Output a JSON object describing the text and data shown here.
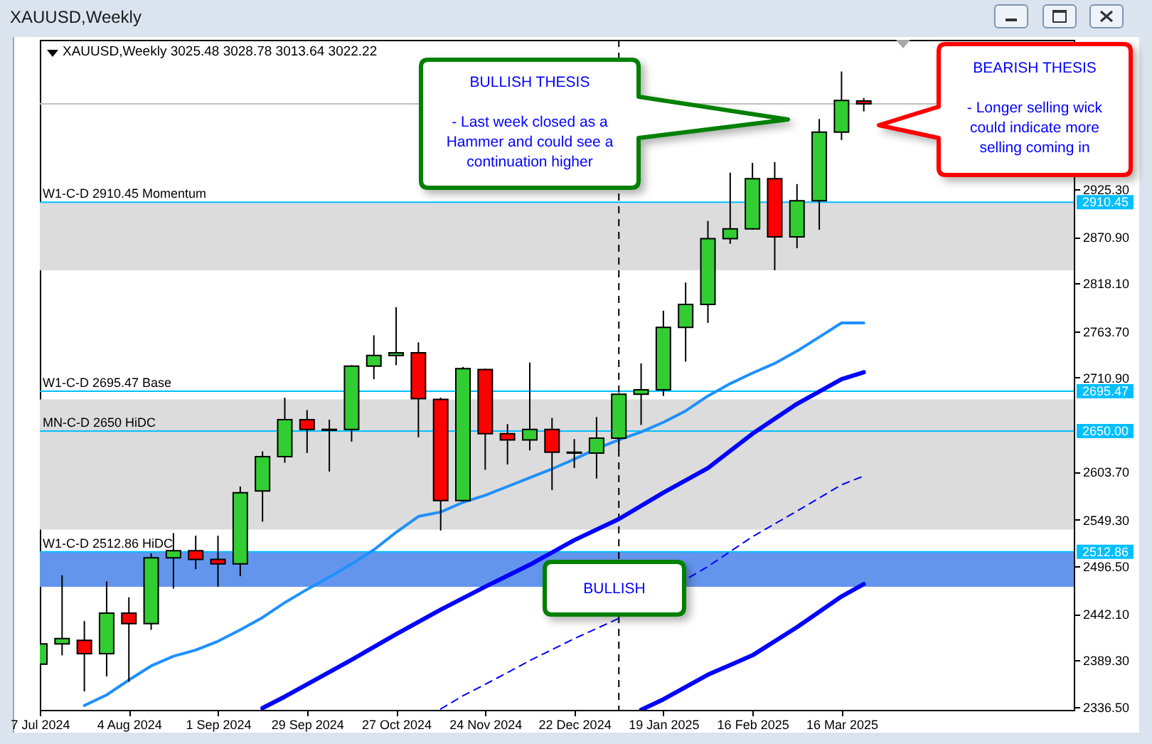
{
  "chart_data": {
    "type": "candlestick",
    "title": "XAUUSD,Weekly",
    "subtitle": "XAUUSD,Weekly 3025.48 3028.78 3013.64 3022.22",
    "x": [
      "2024-07-07",
      "2024-07-14",
      "2024-07-21",
      "2024-07-28",
      "2024-08-04",
      "2024-08-11",
      "2024-08-18",
      "2024-08-25",
      "2024-09-01",
      "2024-09-08",
      "2024-09-15",
      "2024-09-22",
      "2024-09-29",
      "2024-10-06",
      "2024-10-13",
      "2024-10-20",
      "2024-10-27",
      "2024-11-03",
      "2024-11-10",
      "2024-11-17",
      "2024-11-24",
      "2024-12-01",
      "2024-12-08",
      "2024-12-15",
      "2024-12-22",
      "2024-12-29",
      "2025-01-05",
      "2025-01-12",
      "2025-01-19",
      "2025-01-26",
      "2025-02-02",
      "2025-02-09",
      "2025-02-16",
      "2025-02-23",
      "2025-03-02",
      "2025-03-09",
      "2025-03-16",
      "2025-03-23"
    ],
    "ohlc": [
      [
        2385,
        2427,
        2350,
        2408
      ],
      [
        2408,
        2486,
        2395,
        2414
      ],
      [
        2412,
        2434,
        2354,
        2397
      ],
      [
        2397,
        2479,
        2371,
        2443
      ],
      [
        2443,
        2461,
        2365,
        2431
      ],
      [
        2431,
        2511,
        2424,
        2506
      ],
      [
        2506,
        2534,
        2471,
        2514
      ],
      [
        2514,
        2531,
        2493,
        2504
      ],
      [
        2504,
        2531,
        2473,
        2499
      ],
      [
        2499,
        2587,
        2485,
        2580
      ],
      [
        2582,
        2627,
        2547,
        2621
      ],
      [
        2621,
        2688,
        2614,
        2663
      ],
      [
        2663,
        2674,
        2625,
        2652
      ],
      [
        2651,
        2663,
        2604,
        2652
      ],
      [
        2652,
        2725,
        2638,
        2724
      ],
      [
        2724,
        2759,
        2709,
        2736
      ],
      [
        2736,
        2791,
        2725,
        2739
      ],
      [
        2739,
        2751,
        2643,
        2687
      ],
      [
        2686,
        2688,
        2537,
        2571
      ],
      [
        2571,
        2723,
        2570,
        2721
      ],
      [
        2720,
        2721,
        2606,
        2647
      ],
      [
        2647,
        2658,
        2612,
        2640
      ],
      [
        2640,
        2728,
        2628,
        2652
      ],
      [
        2652,
        2665,
        2583,
        2626
      ],
      [
        2626,
        2641,
        2608,
        2625
      ],
      [
        2625,
        2666,
        2596,
        2642
      ],
      [
        2642,
        2693,
        2628,
        2692
      ],
      [
        2692,
        2727,
        2657,
        2697
      ],
      [
        2697,
        2787,
        2690,
        2768
      ],
      [
        2768,
        2819,
        2729,
        2794
      ],
      [
        2794,
        2889,
        2773,
        2869
      ],
      [
        2869,
        2944,
        2863,
        2880
      ],
      [
        2880,
        2955,
        2879,
        2937
      ],
      [
        2937,
        2956,
        2833,
        2871
      ],
      [
        2871,
        2931,
        2858,
        2912
      ],
      [
        2912,
        3005,
        2879,
        2990
      ],
      [
        2990,
        3059,
        2981,
        3026
      ],
      [
        3025.48,
        3028.78,
        3013.64,
        3022.22
      ]
    ],
    "colors": [
      "#32cd32",
      "#32cd32",
      "#ff0000",
      "#32cd32",
      "#ff0000",
      "#32cd32",
      "#32cd32",
      "#ff0000",
      "#ff0000",
      "#32cd32",
      "#32cd32",
      "#32cd32",
      "#ff0000",
      "#32cd32",
      "#32cd32",
      "#32cd32",
      "#32cd32",
      "#ff0000",
      "#ff0000",
      "#32cd32",
      "#ff0000",
      "#ff0000",
      "#32cd32",
      "#ff0000",
      "#ff0000",
      "#32cd32",
      "#32cd32",
      "#32cd32",
      "#32cd32",
      "#32cd32",
      "#32cd32",
      "#32cd32",
      "#32cd32",
      "#ff0000",
      "#32cd32",
      "#32cd32",
      "#32cd32",
      "#ff0000"
    ],
    "series": [
      {
        "type": "line",
        "color": "#1e90ff",
        "x": [
          "2024-07-21",
          "2024-07-28",
          "2024-08-04",
          "2024-08-11",
          "2024-08-18",
          "2024-08-25",
          "2024-09-01",
          "2024-09-08",
          "2024-09-15",
          "2024-09-22",
          "2024-09-29",
          "2024-10-06",
          "2024-10-13",
          "2024-10-20",
          "2024-10-27",
          "2024-11-03",
          "2024-11-10",
          "2024-11-17",
          "2024-11-24",
          "2024-12-01",
          "2024-12-08",
          "2024-12-15",
          "2024-12-22",
          "2024-12-29",
          "2025-01-05",
          "2025-01-12",
          "2025-01-19",
          "2025-01-26",
          "2025-02-02",
          "2025-02-09",
          "2025-02-16",
          "2025-02-23",
          "2025-03-02",
          "2025-03-09",
          "2025-03-16",
          "2025-03-23"
        ],
        "values": [
          2338,
          2350,
          2367,
          2383,
          2394,
          2401,
          2411,
          2424,
          2438,
          2455,
          2470,
          2484,
          2499,
          2515,
          2535,
          2553,
          2558,
          2569,
          2577,
          2587,
          2597,
          2607,
          2618,
          2630,
          2640,
          2649,
          2660,
          2673,
          2690,
          2704,
          2716,
          2727,
          2741,
          2757,
          2773,
          2773
        ]
      },
      {
        "type": "line",
        "color": "#0000ff",
        "x": [
          "2024-09-15",
          "2024-09-22",
          "2024-09-29",
          "2024-10-13",
          "2024-10-27",
          "2024-11-10",
          "2024-11-24",
          "2024-12-08",
          "2024-12-22",
          "2025-01-05",
          "2025-01-19",
          "2025-02-02",
          "2025-02-16",
          "2025-03-02",
          "2025-03-16",
          "2025-03-23"
        ],
        "values": [
          2335,
          2348,
          2362,
          2390,
          2419,
          2447,
          2473,
          2498,
          2526,
          2550,
          2580,
          2608,
          2647,
          2681,
          2709,
          2717
        ]
      },
      {
        "type": "line",
        "color": "#0000ff",
        "line_style": "dashed",
        "x": [
          "2024-11-10",
          "2024-11-17",
          "2024-11-24",
          "2024-12-08",
          "2024-12-22",
          "2025-01-05",
          "2025-02-02",
          "2025-02-16",
          "2025-03-02",
          "2025-03-16",
          "2025-03-23"
        ],
        "values": [
          2334,
          2349,
          2362,
          2389,
          2414,
          2437,
          2496,
          2530,
          2559,
          2589,
          2599
        ]
      },
      {
        "type": "line",
        "color": "#0000ff",
        "x": [
          "2025-01-12",
          "2025-01-19",
          "2025-02-02",
          "2025-02-16",
          "2025-03-02",
          "2025-03-16",
          "2025-03-23"
        ],
        "values": [
          2333,
          2345,
          2373,
          2395,
          2427,
          2462,
          2476
        ]
      }
    ],
    "xlim": [
      "2024-07-07",
      "2025-05-28"
    ],
    "xticks": [
      {
        "value": "2024-07-07",
        "label": "7 Jul 2024"
      },
      {
        "value": "2024-08-04",
        "label": "4 Aug 2024"
      },
      {
        "value": "2024-09-01",
        "label": "1 Sep 2024"
      },
      {
        "value": "2024-09-29",
        "label": "29 Sep 2024"
      },
      {
        "value": "2024-10-27",
        "label": "27 Oct 2024"
      },
      {
        "value": "2024-11-24",
        "label": "24 Nov 2024"
      },
      {
        "value": "2024-12-22",
        "label": "22 Dec 2024"
      },
      {
        "value": "2025-01-19",
        "label": "19 Jan 2025"
      },
      {
        "value": "2025-02-16",
        "label": "16 Feb 2025"
      },
      {
        "value": "2025-03-16",
        "label": "16 Mar 2025"
      }
    ],
    "ylim": [
      2333,
      3095
    ],
    "yticks": [
      {
        "value": 2336.5,
        "label": "2336.50"
      },
      {
        "value": 2389.3,
        "label": "2389.30"
      },
      {
        "value": 2442.1,
        "label": "2442.10"
      },
      {
        "value": 2496.5,
        "label": "2496.50"
      },
      2512.86,
      {
        "value": 2549.3,
        "label": "2549.30"
      },
      {
        "value": 2603.7,
        "label": "2603.70"
      },
      {
        "value": 2650,
        "label": "2650.00"
      },
      2695.47,
      {
        "value": 2710.9,
        "label": "2710.90"
      },
      {
        "value": 2763.7,
        "label": "2763.70"
      },
      {
        "value": 2818.1,
        "label": "2818.10"
      },
      {
        "value": 2870.9,
        "label": "2870.90"
      },
      2910.45,
      {
        "value": 2925.3,
        "label": "2925.30"
      }
    ],
    "ref_lines": [
      {
        "axis": "y",
        "value": 2910.45,
        "label": "W1-C-D 2910.45 Momentum",
        "color": "#00bfff"
      },
      {
        "axis": "y",
        "value": 2695.47,
        "label": "W1-C-D 2695.47 Base",
        "color": "#00bfff"
      },
      {
        "axis": "y",
        "value": 2650,
        "label": "MN-C-D 2650 HiDC",
        "color": "#00bfff"
      },
      {
        "axis": "y",
        "value": 2512.86,
        "label": "W1-C-D 2512.86 HiDC",
        "color": "#00bfff"
      },
      {
        "axis": "y",
        "value": 3022.22,
        "color": "#c0c0c0"
      },
      {
        "axis": "x",
        "value": "2025-01-05",
        "color": "#000000",
        "line_style": "dashed"
      }
    ],
    "bands": [
      {
        "axis": "y",
        "from": 2833,
        "to": 2910.45,
        "color": "#dcdcdc"
      },
      {
        "axis": "y",
        "from": 2538,
        "to": 2686,
        "color": "#dcdcdc"
      },
      {
        "axis": "y",
        "from": 2473,
        "to": 2512.86,
        "color": "#6495ed"
      }
    ],
    "annotations": [
      "BULLISH THESIS",
      "- Last week closed as a Hammer and could see a continuation higher",
      "BEARISH THESIS",
      "- Longer selling wick could indicate more selling coming in",
      "BULLISH"
    ]
  }
}
